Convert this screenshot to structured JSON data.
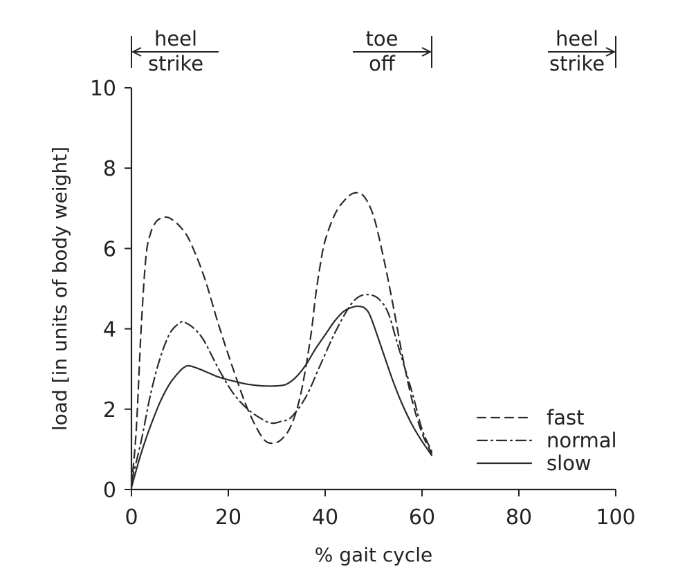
{
  "chart_data": {
    "type": "line",
    "xlabel": "% gait cycle",
    "ylabel": "load [in units of body weight]",
    "xlim": [
      0,
      100
    ],
    "ylim": [
      0,
      10
    ],
    "xticks": [
      "0",
      "20",
      "40",
      "60",
      "80",
      "100"
    ],
    "yticks": [
      "0",
      "2",
      "4",
      "6",
      "8",
      "10"
    ],
    "grid": false,
    "legend_position": "bottom-right",
    "annotations": [
      {
        "top": "heel",
        "bottom": "strike",
        "at_x": 0
      },
      {
        "top": "toe",
        "bottom": "off",
        "at_x": 62
      },
      {
        "top": "heel",
        "bottom": "strike",
        "at_x": 100
      }
    ],
    "series": [
      {
        "name": "fast",
        "dash": "dashed",
        "x": [
          0,
          1,
          2,
          3,
          4,
          5,
          6,
          7,
          8,
          10,
          12,
          15,
          18,
          21,
          24,
          27,
          29,
          31,
          33,
          35,
          37,
          38,
          39,
          40,
          42,
          44,
          46,
          48,
          50,
          52,
          54,
          56,
          58,
          60,
          62
        ],
        "y": [
          0.1,
          1.5,
          4.0,
          5.8,
          6.4,
          6.65,
          6.75,
          6.78,
          6.75,
          6.55,
          6.2,
          5.3,
          4.1,
          3.0,
          2.0,
          1.3,
          1.15,
          1.25,
          1.6,
          2.4,
          3.8,
          4.8,
          5.6,
          6.2,
          6.85,
          7.2,
          7.38,
          7.3,
          6.8,
          5.8,
          4.6,
          3.3,
          2.2,
          1.4,
          0.9
        ]
      },
      {
        "name": "normal",
        "dash": "dash-dot",
        "x": [
          0,
          2,
          4,
          6,
          8,
          10,
          11,
          13,
          15,
          18,
          21,
          24,
          27,
          29,
          31,
          33,
          36,
          39,
          42,
          45,
          47,
          49,
          51,
          53,
          55,
          58,
          60,
          62
        ],
        "y": [
          0.2,
          1.2,
          2.4,
          3.3,
          3.9,
          4.15,
          4.16,
          4.0,
          3.7,
          3.0,
          2.4,
          2.0,
          1.75,
          1.65,
          1.7,
          1.8,
          2.3,
          3.1,
          3.9,
          4.55,
          4.8,
          4.85,
          4.75,
          4.4,
          3.6,
          2.4,
          1.5,
          0.95
        ]
      },
      {
        "name": "slow",
        "dash": "solid",
        "x": [
          0,
          2,
          4,
          6,
          8,
          10,
          11,
          12,
          14,
          16,
          18,
          21,
          24,
          27,
          30,
          32,
          34,
          36,
          38,
          40,
          42,
          44,
          46,
          47,
          48,
          49,
          50,
          52,
          54,
          56,
          58,
          60,
          62
        ],
        "y": [
          0.05,
          0.9,
          1.6,
          2.2,
          2.65,
          2.95,
          3.05,
          3.08,
          3.0,
          2.9,
          2.8,
          2.7,
          2.62,
          2.58,
          2.58,
          2.62,
          2.8,
          3.1,
          3.5,
          3.85,
          4.2,
          4.45,
          4.55,
          4.56,
          4.53,
          4.4,
          4.1,
          3.4,
          2.7,
          2.1,
          1.6,
          1.2,
          0.85
        ]
      }
    ]
  }
}
